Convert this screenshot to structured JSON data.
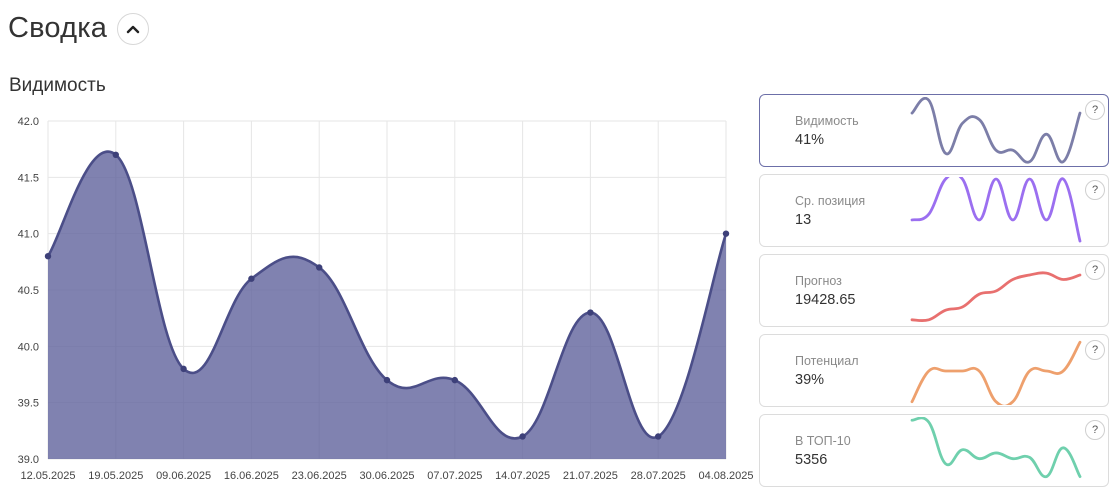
{
  "header": {
    "title": "Сводка"
  },
  "section": {
    "title": "Видимость"
  },
  "chart_data": {
    "type": "area",
    "categories": [
      "12.05.2025",
      "19.05.2025",
      "09.06.2025",
      "16.06.2025",
      "23.06.2025",
      "30.06.2025",
      "07.07.2025",
      "14.07.2025",
      "21.07.2025",
      "28.07.2025",
      "04.08.2025"
    ],
    "values": [
      40.8,
      41.7,
      39.8,
      40.6,
      40.7,
      39.7,
      39.7,
      39.2,
      40.3,
      39.2,
      41.0
    ],
    "yticks": [
      "42.0",
      "41.5",
      "41.0",
      "40.5",
      "40.0",
      "39.5",
      "39.0"
    ],
    "ylim": [
      39.0,
      42.0
    ],
    "grid": true,
    "color": "#5c5f9a"
  },
  "cards": [
    {
      "label": "Видимость",
      "value": "41%",
      "color": "#7c7ea8",
      "spark": [
        0.78,
        0.98,
        0.15,
        0.62,
        0.68,
        0.2,
        0.2,
        0.02,
        0.45,
        0.02,
        0.78
      ]
    },
    {
      "label": "Ср. позиция",
      "value": "13",
      "color": "#9b6ff0",
      "spark": [
        0.36,
        0.45,
        1.0,
        1.0,
        0.36,
        1.0,
        0.36,
        1.0,
        0.36,
        1.0,
        0.03
      ]
    },
    {
      "label": "Прогноз",
      "value": "19428.65",
      "color": "#e8706f",
      "spark": [
        0.05,
        0.05,
        0.2,
        0.25,
        0.45,
        0.5,
        0.68,
        0.75,
        0.78,
        0.68,
        0.75
      ]
    },
    {
      "label": "Потенциал",
      "value": "39%",
      "color": "#eea06d",
      "spark": [
        0.02,
        0.5,
        0.5,
        0.5,
        0.5,
        0.02,
        0.02,
        0.5,
        0.5,
        0.5,
        0.95
      ]
    },
    {
      "label": "В ТОП-10",
      "value": "5356",
      "color": "#6fd0ad",
      "spark": [
        0.98,
        0.95,
        0.3,
        0.52,
        0.38,
        0.47,
        0.38,
        0.4,
        0.1,
        0.55,
        0.1
      ]
    }
  ]
}
